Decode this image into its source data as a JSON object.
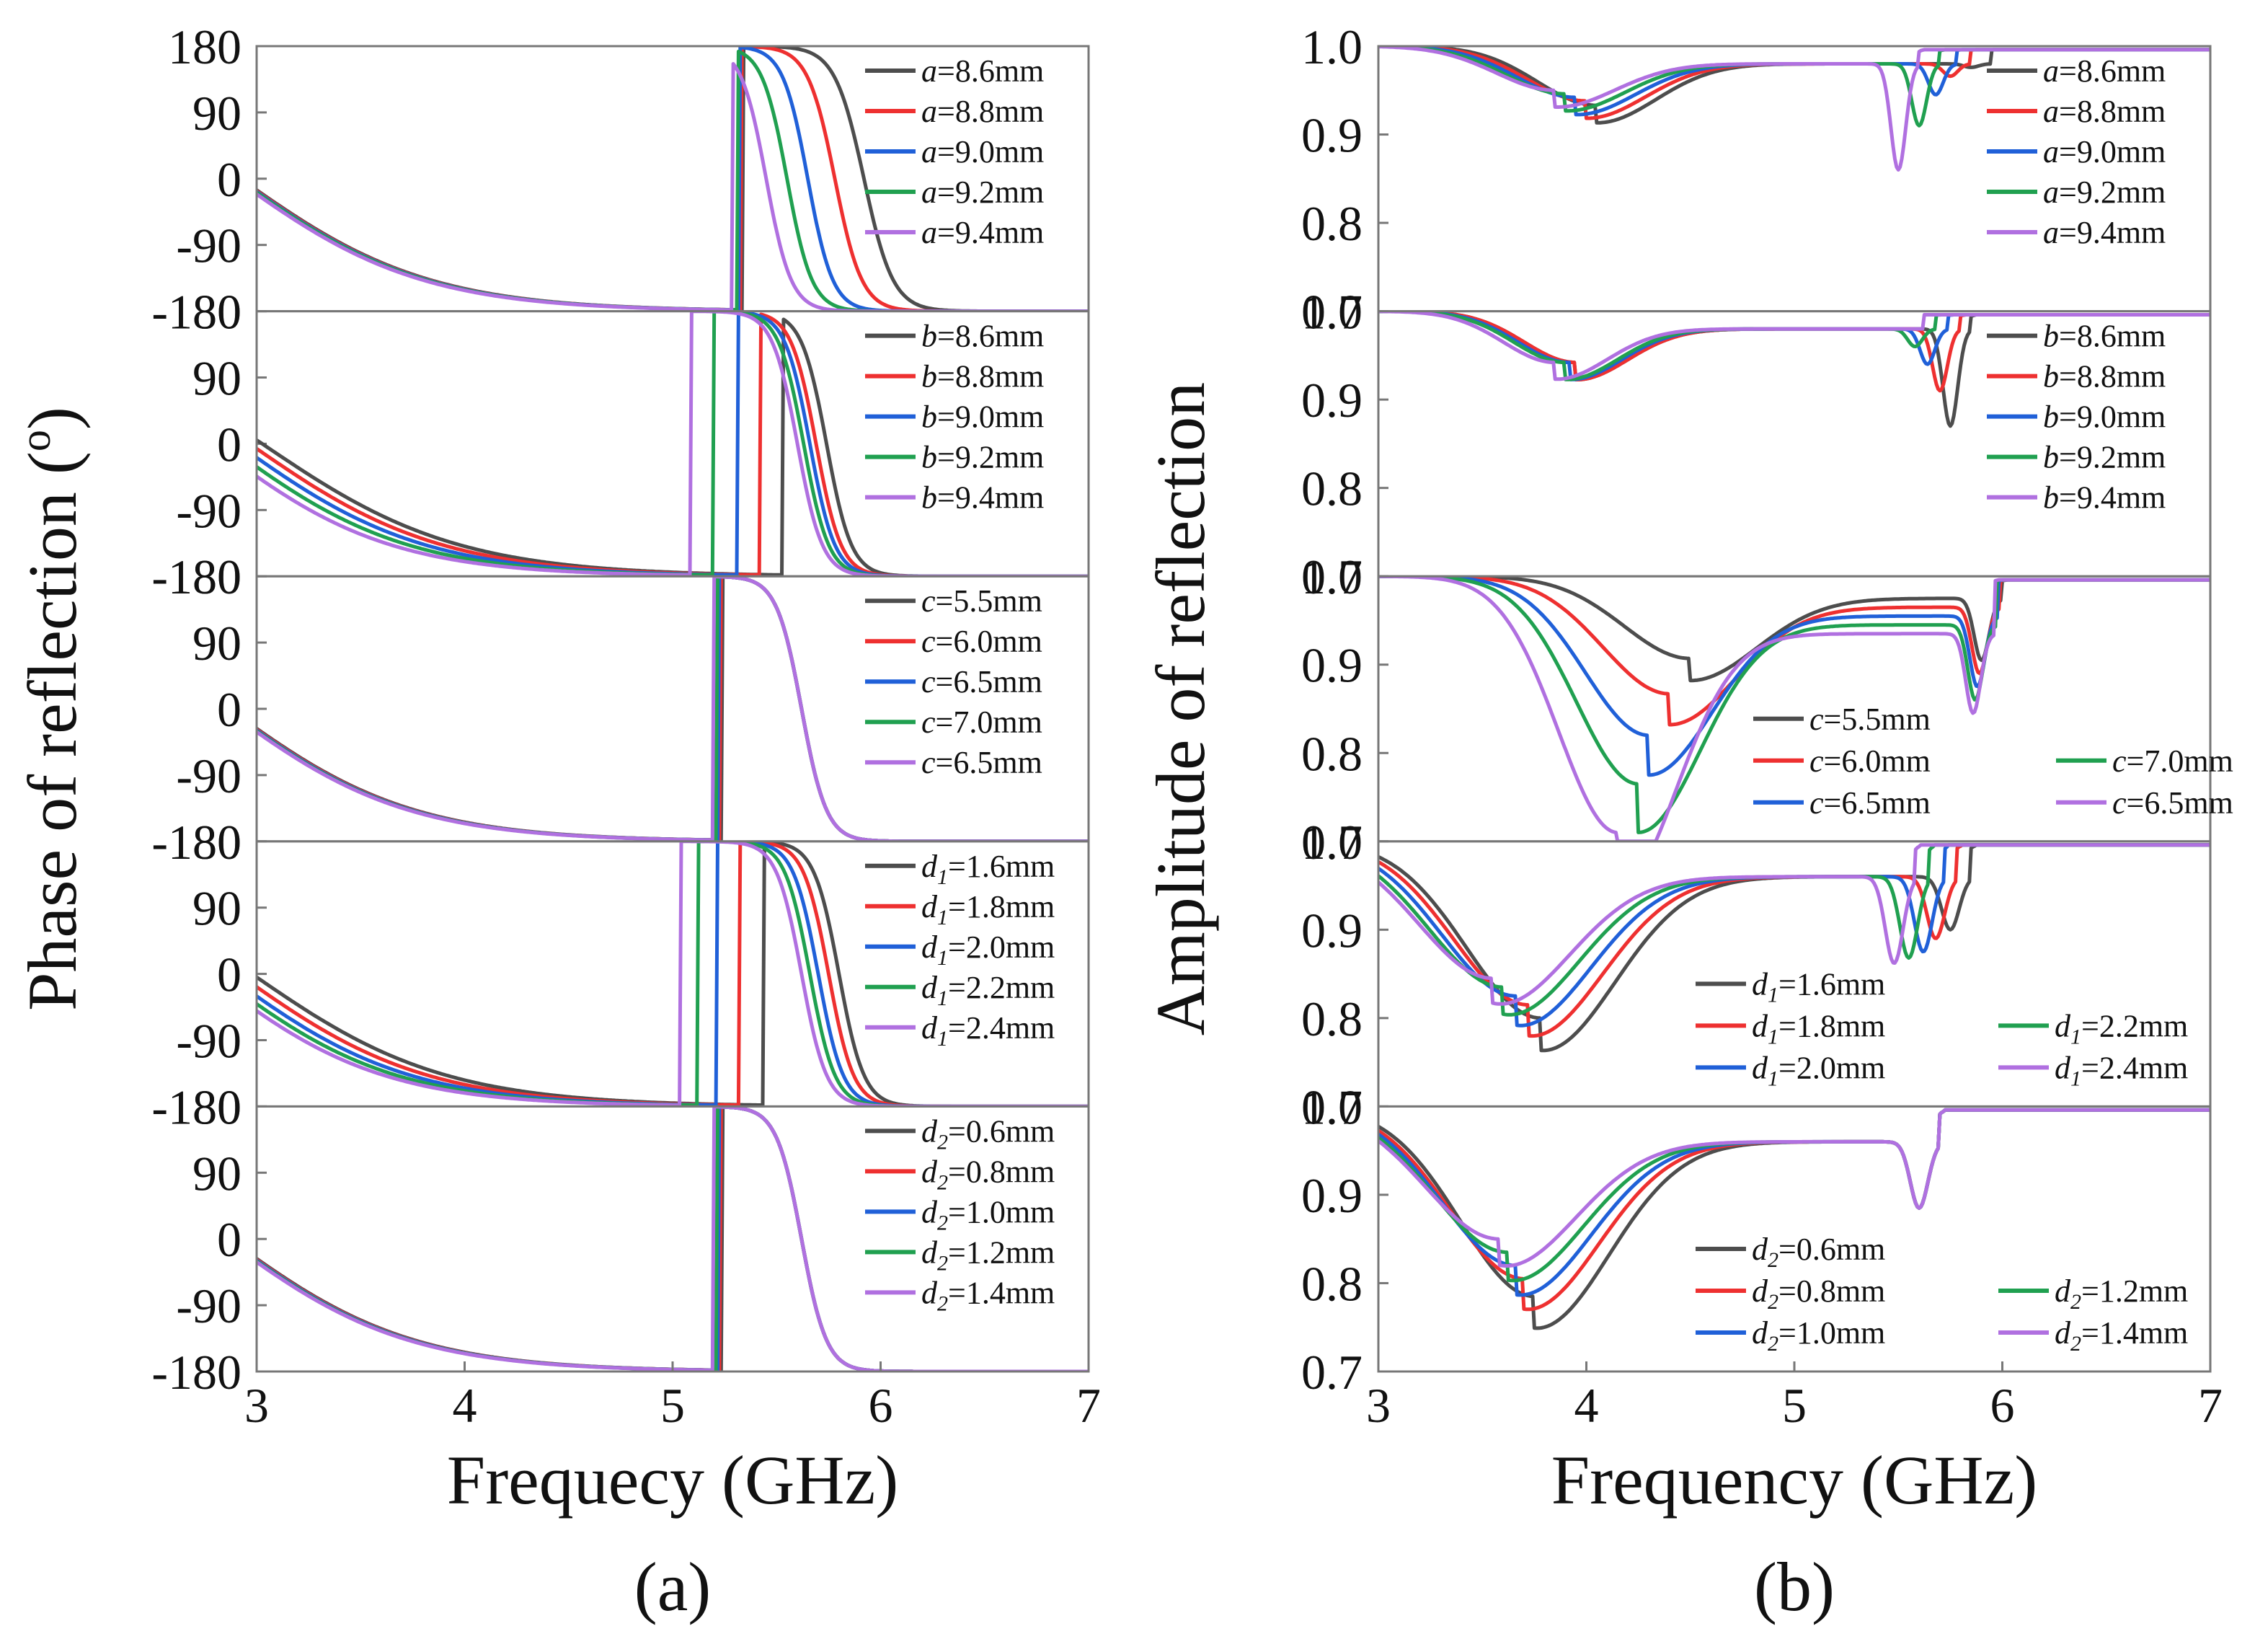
{
  "figure": {
    "colors": [
      "#4d4d4d",
      "#ee3030",
      "#2060d8",
      "#20a050",
      "#b070e0"
    ]
  },
  "chart_data": [
    {
      "id": "a",
      "type": "line",
      "caption": "(a)",
      "xlabel": "Frequecy (GHz)",
      "ylabel": "Phase of reflection (º)",
      "ylabel_main": "Phase of reflection (",
      "ylabel_sup": "o",
      "ylabel_end": ")",
      "xlim": [
        3,
        7
      ],
      "xticks": [
        "3",
        "4",
        "5",
        "6",
        "7"
      ],
      "ylim": [
        -180,
        180
      ],
      "yticks": [
        "180",
        "90",
        "0",
        "-90",
        "-180"
      ],
      "grid": false,
      "panels": [
        {
          "param": "a",
          "legend_layout": "column",
          "series": [
            {
              "label": "=8.6mm",
              "jump": 5.34,
              "mid": 5.92,
              "w": 0.07
            },
            {
              "label": "=8.8mm",
              "jump": 5.33,
              "mid": 5.78,
              "w": 0.065
            },
            {
              "label": "=9.0mm",
              "jump": 5.32,
              "mid": 5.65,
              "w": 0.06
            },
            {
              "label": "=9.2mm",
              "jump": 5.31,
              "mid": 5.55,
              "w": 0.06
            },
            {
              "label": "=9.4mm",
              "jump": 5.29,
              "mid": 5.45,
              "w": 0.06
            }
          ]
        },
        {
          "param": "b",
          "legend_layout": "column",
          "series": [
            {
              "label": "=8.6mm",
              "jump": 5.53,
              "mid": 5.74,
              "w": 0.06
            },
            {
              "label": "=8.8mm",
              "jump": 5.42,
              "mid": 5.69,
              "w": 0.06
            },
            {
              "label": "=9.0mm",
              "jump": 5.31,
              "mid": 5.66,
              "w": 0.06
            },
            {
              "label": "=9.2mm",
              "jump": 5.2,
              "mid": 5.63,
              "w": 0.06
            },
            {
              "label": "=9.4mm",
              "jump": 5.09,
              "mid": 5.6,
              "w": 0.06
            }
          ]
        },
        {
          "param": "c",
          "legend_layout": "column",
          "series": [
            {
              "label": "=5.5mm",
              "jump": 5.24,
              "mid": 5.62,
              "w": 0.06
            },
            {
              "label": "=6.0mm",
              "jump": 5.23,
              "mid": 5.62,
              "w": 0.06
            },
            {
              "label": "=6.5mm",
              "jump": 5.22,
              "mid": 5.62,
              "w": 0.06
            },
            {
              "label": "=7.0mm",
              "jump": 5.21,
              "mid": 5.62,
              "w": 0.06
            },
            {
              "label": "=6.5mm",
              "jump": 5.2,
              "mid": 5.62,
              "w": 0.06
            }
          ]
        },
        {
          "param": "d",
          "sub": "1",
          "legend_layout": "column",
          "series": [
            {
              "label": "=1.6mm",
              "jump": 5.44,
              "mid": 5.8,
              "w": 0.06
            },
            {
              "label": "=1.8mm",
              "jump": 5.32,
              "mid": 5.75,
              "w": 0.06
            },
            {
              "label": "=2.0mm",
              "jump": 5.21,
              "mid": 5.7,
              "w": 0.06
            },
            {
              "label": "=2.2mm",
              "jump": 5.12,
              "mid": 5.66,
              "w": 0.06
            },
            {
              "label": "=2.4mm",
              "jump": 5.04,
              "mid": 5.62,
              "w": 0.06
            }
          ]
        },
        {
          "param": "d",
          "sub": "2",
          "legend_layout": "column",
          "series": [
            {
              "label": "=0.6mm",
              "jump": 5.24,
              "mid": 5.62,
              "w": 0.06
            },
            {
              "label": "=0.8mm",
              "jump": 5.23,
              "mid": 5.62,
              "w": 0.06
            },
            {
              "label": "=1.0mm",
              "jump": 5.22,
              "mid": 5.62,
              "w": 0.06
            },
            {
              "label": "=1.2mm",
              "jump": 5.21,
              "mid": 5.62,
              "w": 0.06
            },
            {
              "label": "=1.4mm",
              "jump": 5.2,
              "mid": 5.62,
              "w": 0.06
            }
          ]
        }
      ]
    },
    {
      "id": "b",
      "type": "line",
      "caption": "(b)",
      "xlabel": "Frequency (GHz)",
      "ylabel": "Amplitude of reflection",
      "xlim": [
        3,
        7
      ],
      "xticks": [
        "3",
        "4",
        "5",
        "6",
        "7"
      ],
      "ylim": [
        0.7,
        1.0
      ],
      "yticks": [
        "1.0",
        "0.9",
        "0.8",
        "0.7"
      ],
      "grid": false,
      "panels": [
        {
          "param": "a",
          "legend_layout": "column",
          "series": [
            {
              "label": "=8.6mm",
              "d1": 4.05,
              "v1": 0.933,
              "s1": 0.4,
              "d2": 5.85,
              "v2": 0.976,
              "s2": 0.05,
              "f": 0.98
            },
            {
              "label": "=8.8mm",
              "d1": 4.0,
              "v1": 0.938,
              "s1": 0.4,
              "d2": 5.75,
              "v2": 0.966,
              "s2": 0.05,
              "f": 0.98
            },
            {
              "label": "=9.0mm",
              "d1": 3.95,
              "v1": 0.942,
              "s1": 0.4,
              "d2": 5.68,
              "v2": 0.945,
              "s2": 0.05,
              "f": 0.98
            },
            {
              "label": "=9.2mm",
              "d1": 3.9,
              "v1": 0.946,
              "s1": 0.4,
              "d2": 5.6,
              "v2": 0.91,
              "s2": 0.05,
              "f": 0.98
            },
            {
              "label": "=9.4mm",
              "d1": 3.85,
              "v1": 0.95,
              "s1": 0.4,
              "d2": 5.5,
              "v2": 0.86,
              "s2": 0.05,
              "f": 0.98
            }
          ]
        },
        {
          "param": "b",
          "legend_layout": "column",
          "series": [
            {
              "label": "=8.6mm",
              "d1": 3.95,
              "v1": 0.942,
              "s1": 0.35,
              "d2": 5.75,
              "v2": 0.87,
              "s2": 0.05,
              "f": 0.98
            },
            {
              "label": "=8.8mm",
              "d1": 3.95,
              "v1": 0.942,
              "s1": 0.35,
              "d2": 5.7,
              "v2": 0.91,
              "s2": 0.05,
              "f": 0.98
            },
            {
              "label": "=9.0mm",
              "d1": 3.92,
              "v1": 0.942,
              "s1": 0.35,
              "d2": 5.64,
              "v2": 0.94,
              "s2": 0.05,
              "f": 0.98
            },
            {
              "label": "=9.2mm",
              "d1": 3.9,
              "v1": 0.942,
              "s1": 0.35,
              "d2": 5.58,
              "v2": 0.96,
              "s2": 0.05,
              "f": 0.98
            },
            {
              "label": "=9.4mm",
              "d1": 3.85,
              "v1": 0.942,
              "s1": 0.35,
              "d2": 5.52,
              "v2": 0.98,
              "s2": 0.05,
              "f": 0.98
            }
          ]
        },
        {
          "param": "c",
          "legend_layout": "grid",
          "series": [
            {
              "label": "=5.5mm",
              "d1": 4.5,
              "v1": 0.907,
              "s1": 0.45,
              "d2": 5.9,
              "v2": 0.905,
              "s2": 0.05,
              "f": 0.975
            },
            {
              "label": "=6.0mm",
              "d1": 4.4,
              "v1": 0.867,
              "s1": 0.45,
              "d2": 5.89,
              "v2": 0.89,
              "s2": 0.05,
              "f": 0.965
            },
            {
              "label": "=6.5mm",
              "d1": 4.3,
              "v1": 0.82,
              "s1": 0.43,
              "d2": 5.88,
              "v2": 0.875,
              "s2": 0.05,
              "f": 0.955
            },
            {
              "label": "=7.0mm",
              "d1": 4.25,
              "v1": 0.765,
              "s1": 0.42,
              "d2": 5.87,
              "v2": 0.86,
              "s2": 0.05,
              "f": 0.945
            },
            {
              "label": "=6.5mm",
              "d1": 4.15,
              "v1": 0.71,
              "s1": 0.4,
              "d2": 5.86,
              "v2": 0.845,
              "s2": 0.05,
              "f": 0.935
            }
          ]
        },
        {
          "param": "d",
          "sub": "1",
          "legend_layout": "grid",
          "series": [
            {
              "label": "=1.6mm",
              "d1": 3.78,
              "v1": 0.8,
              "s1": 0.5,
              "d2": 5.75,
              "v2": 0.9,
              "s2": 0.06,
              "f": 0.96
            },
            {
              "label": "=1.8mm",
              "d1": 3.72,
              "v1": 0.815,
              "s1": 0.5,
              "d2": 5.68,
              "v2": 0.89,
              "s2": 0.06,
              "f": 0.96
            },
            {
              "label": "=2.0mm",
              "d1": 3.66,
              "v1": 0.825,
              "s1": 0.5,
              "d2": 5.62,
              "v2": 0.875,
              "s2": 0.06,
              "f": 0.96
            },
            {
              "label": "=2.2mm",
              "d1": 3.6,
              "v1": 0.835,
              "s1": 0.5,
              "d2": 5.55,
              "v2": 0.868,
              "s2": 0.06,
              "f": 0.96
            },
            {
              "label": "=2.4mm",
              "d1": 3.55,
              "v1": 0.845,
              "s1": 0.5,
              "d2": 5.48,
              "v2": 0.862,
              "s2": 0.06,
              "f": 0.96
            }
          ]
        },
        {
          "param": "d",
          "sub": "2",
          "legend_layout": "grid",
          "series": [
            {
              "label": "=0.6mm",
              "d1": 3.75,
              "v1": 0.785,
              "s1": 0.5,
              "d2": 5.6,
              "v2": 0.885,
              "s2": 0.06,
              "f": 0.96
            },
            {
              "label": "=0.8mm",
              "d1": 3.7,
              "v1": 0.805,
              "s1": 0.5,
              "d2": 5.6,
              "v2": 0.885,
              "s2": 0.06,
              "f": 0.96
            },
            {
              "label": "=1.0mm",
              "d1": 3.66,
              "v1": 0.82,
              "s1": 0.5,
              "d2": 5.6,
              "v2": 0.885,
              "s2": 0.06,
              "f": 0.96
            },
            {
              "label": "=1.2mm",
              "d1": 3.62,
              "v1": 0.835,
              "s1": 0.5,
              "d2": 5.6,
              "v2": 0.885,
              "s2": 0.06,
              "f": 0.96
            },
            {
              "label": "=1.4mm",
              "d1": 3.58,
              "v1": 0.85,
              "s1": 0.5,
              "d2": 5.6,
              "v2": 0.885,
              "s2": 0.06,
              "f": 0.96
            }
          ]
        }
      ]
    }
  ]
}
